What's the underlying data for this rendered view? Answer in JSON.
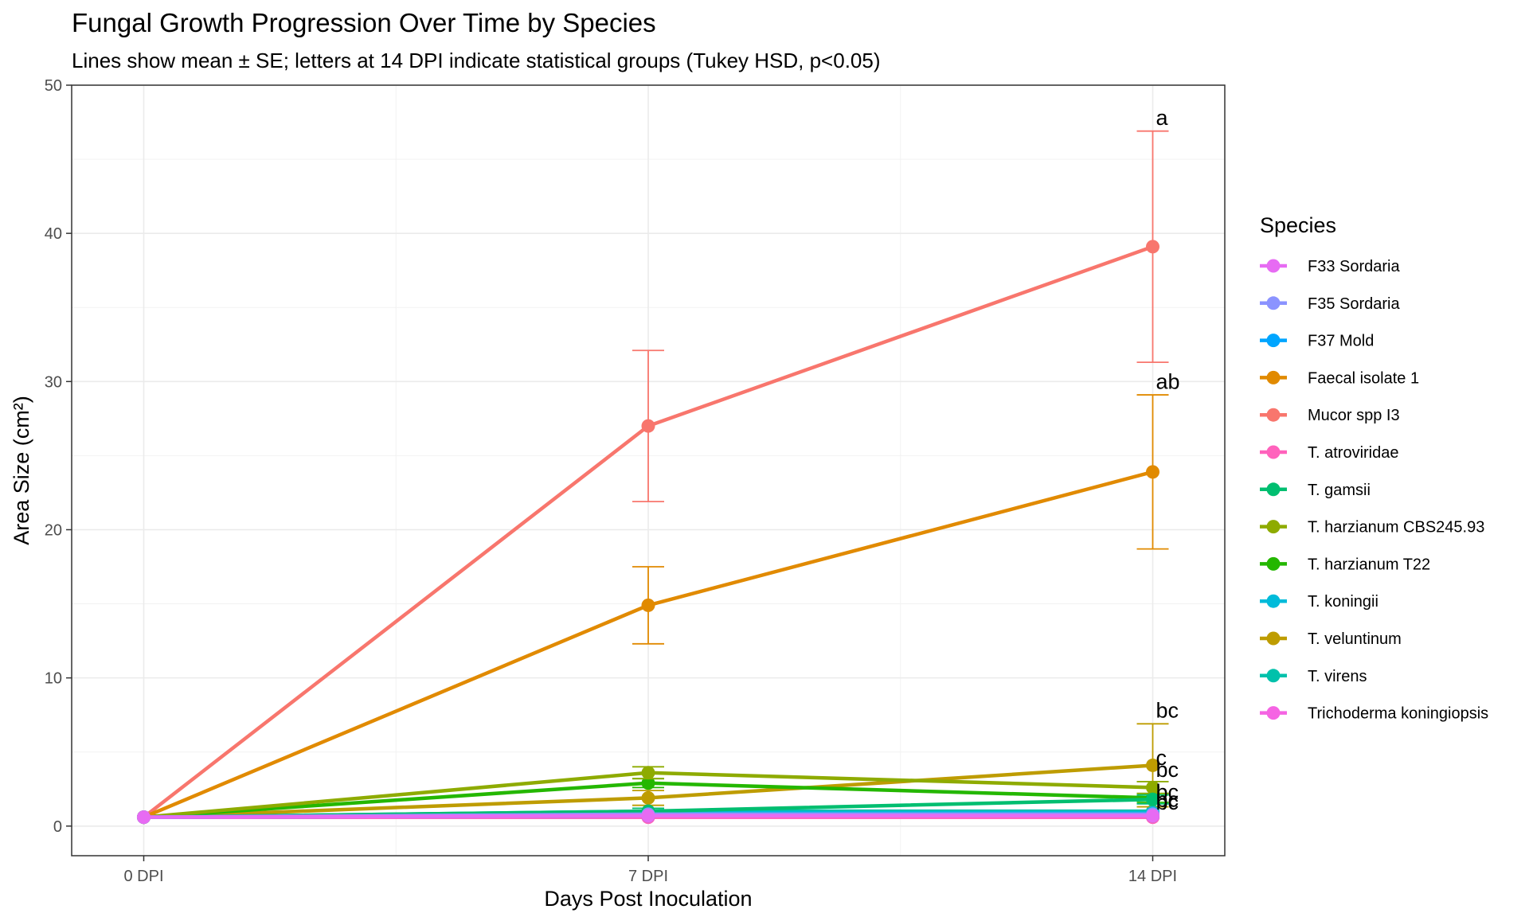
{
  "chart_data": {
    "type": "line",
    "title": "Fungal Growth Progression Over Time by Species",
    "subtitle": "Lines show mean ± SE; letters at 14 DPI indicate statistical groups (Tukey HSD, p<0.05)",
    "xlabel": "Days Post Inoculation",
    "ylabel": "Area Size (cm²)",
    "x": [
      0,
      7,
      14
    ],
    "x_tick_labels": [
      "0 DPI",
      "7 DPI",
      "14 DPI"
    ],
    "xlim": [
      -1,
      15
    ],
    "ylim": [
      -2,
      50
    ],
    "y_ticks": [
      0,
      10,
      20,
      30,
      40,
      50
    ],
    "y_tick_labels": [
      "0",
      "10",
      "20",
      "30",
      "40",
      "50"
    ],
    "grid": true,
    "legend_title": "Species",
    "legend_position": "right",
    "series": [
      {
        "name": "F33 Sordaria",
        "color": "#E76BF3",
        "values": [
          0.6,
          0.7,
          0.7
        ],
        "se": [
          0,
          0,
          0
        ]
      },
      {
        "name": "F35 Sordaria",
        "color": "#8B93FF",
        "values": [
          0.6,
          0.8,
          0.8
        ],
        "se": [
          0,
          0,
          0
        ]
      },
      {
        "name": "F37 Mold",
        "color": "#00A5FF",
        "values": [
          0.6,
          0.7,
          0.7
        ],
        "se": [
          0,
          0,
          0
        ]
      },
      {
        "name": "Faecal isolate 1",
        "color": "#E18A00",
        "values": [
          0.6,
          14.9,
          23.9
        ],
        "se": [
          0,
          2.6,
          5.2
        ]
      },
      {
        "name": "Mucor spp I3",
        "color": "#F8766D",
        "values": [
          0.6,
          27.0,
          39.1
        ],
        "se": [
          0,
          5.1,
          7.8
        ]
      },
      {
        "name": "T. atroviridae",
        "color": "#FF62BC",
        "values": [
          0.6,
          0.6,
          0.6
        ],
        "se": [
          0,
          0,
          0
        ]
      },
      {
        "name": "T. gamsii",
        "color": "#00BE70",
        "values": [
          0.6,
          1.0,
          1.8
        ],
        "se": [
          0,
          0.2,
          0.3
        ]
      },
      {
        "name": "T. harzianum CBS245.93",
        "color": "#8EAB00",
        "values": [
          0.6,
          3.6,
          2.6
        ],
        "se": [
          0,
          0.4,
          0.4
        ]
      },
      {
        "name": "T. harzianum T22",
        "color": "#24B700",
        "values": [
          0.6,
          2.9,
          1.9
        ],
        "se": [
          0,
          0.3,
          0.3
        ]
      },
      {
        "name": "T. koningii",
        "color": "#00BBDA",
        "values": [
          0.6,
          0.9,
          0.9
        ],
        "se": [
          0,
          0,
          0
        ]
      },
      {
        "name": "T. veluntinum",
        "color": "#BE9C00",
        "values": [
          0.6,
          1.9,
          4.1
        ],
        "se": [
          0,
          0.5,
          2.8
        ]
      },
      {
        "name": "T. virens",
        "color": "#00C1AB",
        "values": [
          0.6,
          1.0,
          1.0
        ],
        "se": [
          0,
          0,
          0
        ]
      },
      {
        "name": "Trichoderma koningiopsis",
        "color": "#F564E3",
        "values": [
          0.6,
          0.6,
          0.6
        ],
        "se": [
          0,
          0,
          0
        ]
      }
    ],
    "group_labels": [
      {
        "text": "a",
        "x": 14,
        "y": 47.8
      },
      {
        "text": "ab",
        "x": 14,
        "y": 30.0
      },
      {
        "text": "bc",
        "x": 14,
        "y": 7.8
      },
      {
        "text": "c",
        "x": 14,
        "y": 4.6
      },
      {
        "text": "bc",
        "x": 14,
        "y": 3.8
      },
      {
        "text": "bc",
        "x": 14,
        "y": 2.3
      },
      {
        "text": "bc",
        "x": 14,
        "y": 1.8
      },
      {
        "text": "bc",
        "x": 14,
        "y": 1.6
      }
    ]
  }
}
